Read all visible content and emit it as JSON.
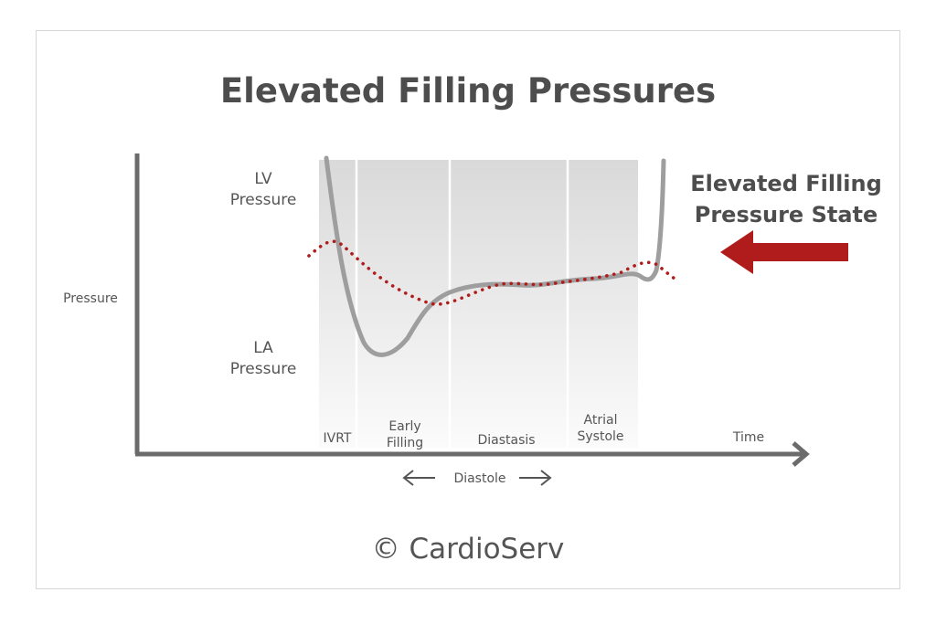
{
  "title": "Elevated Filling Pressures",
  "y_axis_label": "Pressure",
  "x_axis_label": "Time",
  "curve_labels": {
    "lv": [
      "LV",
      "Pressure"
    ],
    "la": [
      "LA",
      "Pressure"
    ]
  },
  "phases": [
    {
      "lines": [
        "IVRT"
      ]
    },
    {
      "lines": [
        "Early",
        "Filling"
      ]
    },
    {
      "lines": [
        "Diastasis"
      ]
    },
    {
      "lines": [
        "Atrial",
        "Systole"
      ]
    }
  ],
  "diastole_label": "Diastole",
  "callout": {
    "lines": [
      "Elevated Filling",
      "Pressure State"
    ],
    "arrow_icon": "left-arrow-icon"
  },
  "copyright": "© CardioServ",
  "colors": {
    "lv_curve": "#9e9e9e",
    "la_curve": "#b01c1c",
    "arrow": "#b01c1c",
    "axis": "#6b6b6b",
    "text": "#555555"
  }
}
